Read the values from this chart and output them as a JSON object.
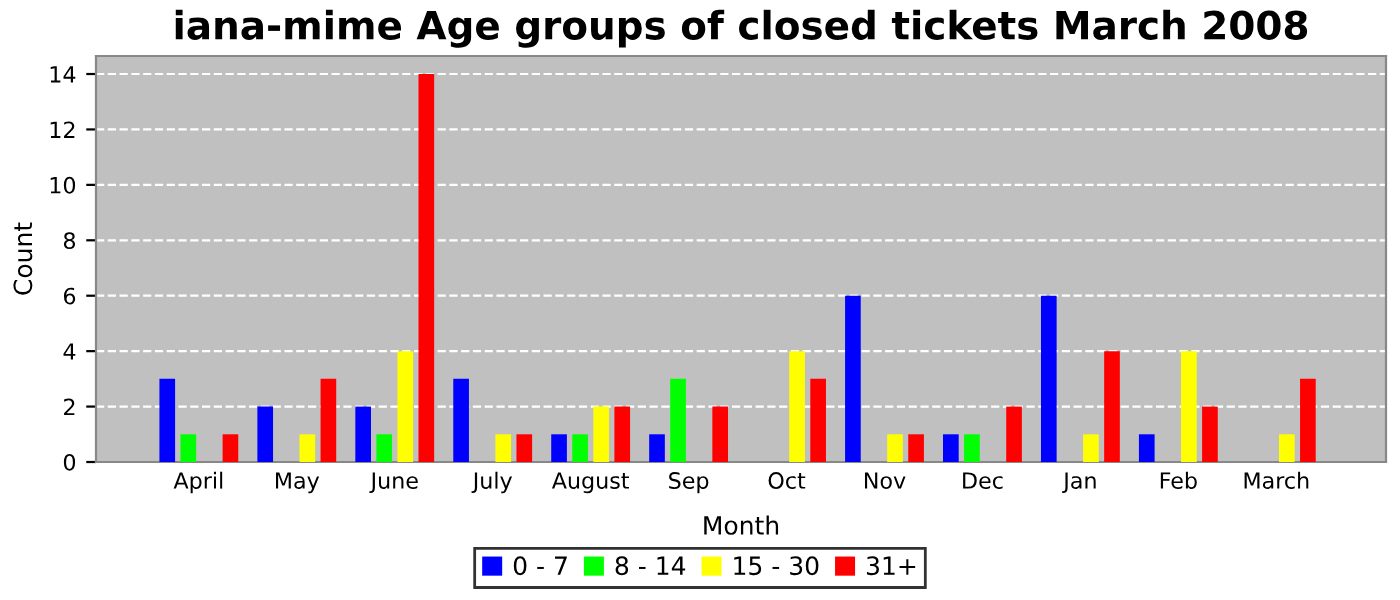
{
  "chart_data": {
    "type": "bar",
    "title": "iana-mime Age groups of closed tickets March 2008",
    "xlabel": "Month",
    "ylabel": "Count",
    "categories": [
      "April",
      "May",
      "June",
      "July",
      "August",
      "Sep",
      "Oct",
      "Nov",
      "Dec",
      "Jan",
      "Feb",
      "March"
    ],
    "series": [
      {
        "name": "0 - 7",
        "color": "#0000ff",
        "values": [
          3,
          2,
          2,
          3,
          1,
          1,
          0,
          6,
          1,
          6,
          1,
          0
        ]
      },
      {
        "name": "8 - 14",
        "color": "#00ff00",
        "values": [
          1,
          0,
          1,
          0,
          1,
          3,
          0,
          0,
          1,
          0,
          0,
          0
        ]
      },
      {
        "name": "15 - 30",
        "color": "#ffff00",
        "values": [
          0,
          1,
          4,
          1,
          2,
          0,
          4,
          1,
          0,
          1,
          4,
          1
        ]
      },
      {
        "name": "31+",
        "color": "#ff0000",
        "values": [
          1,
          3,
          14,
          1,
          2,
          2,
          3,
          1,
          2,
          4,
          2,
          3
        ]
      }
    ],
    "ylim": [
      0,
      14.65
    ],
    "yticks": [
      0,
      2,
      4,
      6,
      8,
      10,
      12,
      14
    ],
    "grid": "y",
    "legend": "bottom"
  }
}
